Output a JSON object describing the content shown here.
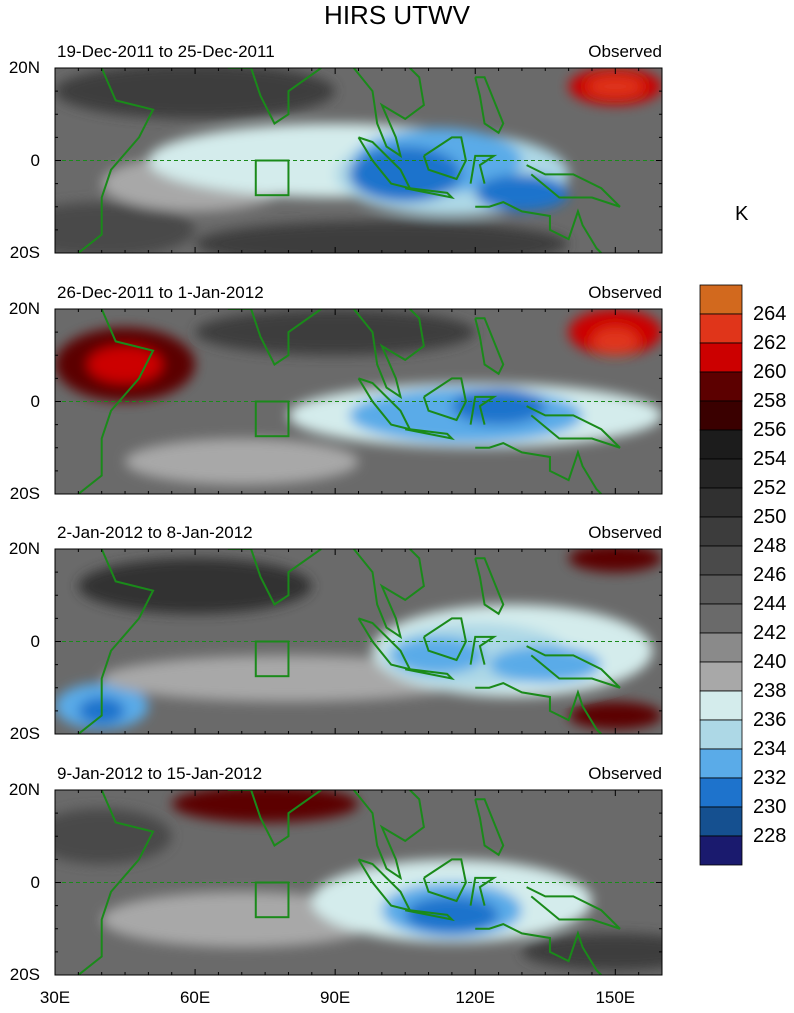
{
  "chart_data": {
    "type": "heatmap",
    "title": "HIRS UTWV",
    "units": "K",
    "x_ticks": [
      "30E",
      "60E",
      "90E",
      "120E",
      "150E"
    ],
    "x_tick_values": [
      30,
      60,
      90,
      120,
      150
    ],
    "y_ticks": [
      "20N",
      "0",
      "20S"
    ],
    "y_tick_values": [
      20,
      0,
      -20
    ],
    "xlim": [
      30,
      160
    ],
    "ylim": [
      -20,
      20
    ],
    "panels": [
      {
        "left_title": "19-Dec-2011 to 25-Dec-2011",
        "right_title": "Observed"
      },
      {
        "left_title": "26-Dec-2011 to 1-Jan-2012",
        "right_title": "Observed"
      },
      {
        "left_title": "2-Jan-2012 to 8-Jan-2012",
        "right_title": "Observed"
      },
      {
        "left_title": "9-Jan-2012 to 15-Jan-2012",
        "right_title": "Observed"
      }
    ],
    "colorbar": {
      "labels": [
        "264",
        "262",
        "260",
        "258",
        "256",
        "254",
        "252",
        "250",
        "248",
        "246",
        "244",
        "242",
        "240",
        "238",
        "236",
        "234",
        "232",
        "230",
        "228"
      ],
      "colors": [
        "#d2691e",
        "#e0351a",
        "#cc0000",
        "#5c0000",
        "#3a0000",
        "#1c1c1c",
        "#252525",
        "#303030",
        "#3c3c3c",
        "#4a4a4a",
        "#5a5a5a",
        "#6a6a6a",
        "#8a8a8a",
        "#a8a8a8",
        "#d4ecec",
        "#add8e6",
        "#5aabe8",
        "#1e73cc",
        "#155090",
        "#1a1a6e"
      ]
    },
    "coast_color": "#1a8a1a"
  }
}
